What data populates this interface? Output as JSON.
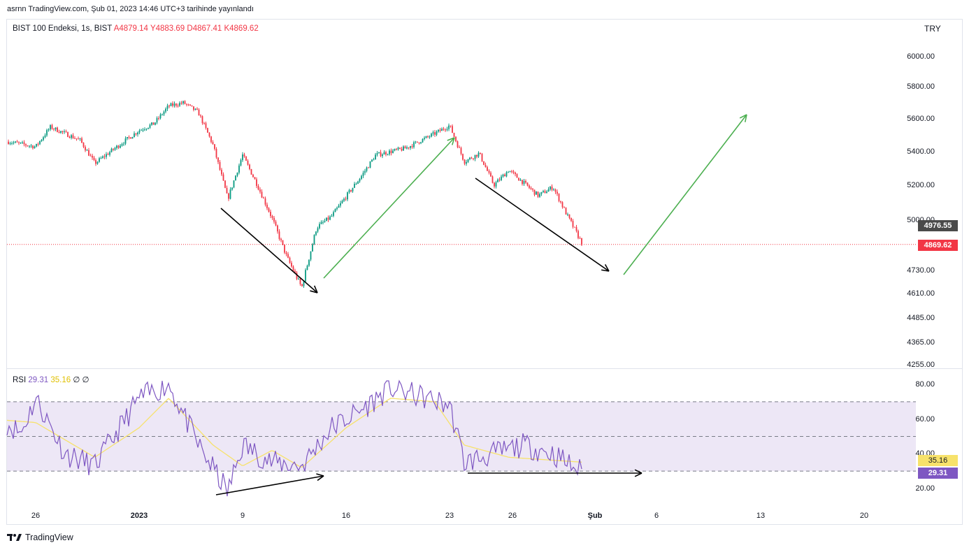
{
  "header": {
    "published": "asrnn TradingView.com, Şub 01, 2023 14:46 UTC+3 tarihinde yayınlandı"
  },
  "legend": {
    "symbol": "BIST 100 Endeksi, 1s, BIST",
    "open": "A4879.14",
    "high": "Y4883.69",
    "low": "D4867.41",
    "close": "K4869.62"
  },
  "rsi_legend": {
    "label": "RSI",
    "rsi": "29.31",
    "ma": "35.16",
    "extra": "∅ ∅"
  },
  "currency": "TRY",
  "price_axis": [
    "6000.00",
    "5800.00",
    "5600.00",
    "5400.00",
    "5200.00",
    "5000.00",
    "4730.00",
    "4610.00",
    "4485.00",
    "4365.00",
    "4255.00"
  ],
  "price_badges": {
    "last_visible": "4976.55",
    "current": "4869.62"
  },
  "rsi_axis": [
    "80.00",
    "60.00",
    "40.00",
    "20.00"
  ],
  "rsi_badges": {
    "ma": "35.16",
    "rsi": "29.31"
  },
  "time_axis": [
    "26",
    "2023",
    "9",
    "16",
    "23",
    "26",
    "Şub",
    "6",
    "13",
    "20"
  ],
  "footer": {
    "brand": "TradingView"
  },
  "colors": {
    "up": "#089981",
    "down": "#f23645",
    "rsi_line": "#7e57c2",
    "rsi_ma": "#f7e26b",
    "rsi_band": "#ede7f6",
    "arrow_green": "#4caf50",
    "arrow_black": "#000000"
  },
  "chart_data": [
    {
      "type": "candlestick",
      "title": "BIST 100 Endeksi, 1s, BIST",
      "ylim": [
        4255,
        6100
      ],
      "current_price": 4869.62,
      "path_points": [
        {
          "x": "2022-12-23",
          "y": 5480
        },
        {
          "x": "2022-12-26",
          "y": 5430
        },
        {
          "x": "2022-12-27",
          "y": 5550
        },
        {
          "x": "2022-12-29",
          "y": 5470
        },
        {
          "x": "2022-12-30",
          "y": 5330
        },
        {
          "x": "2023-01-02",
          "y": 5530
        },
        {
          "x": "2023-01-03",
          "y": 5570
        },
        {
          "x": "2023-01-04",
          "y": 5680
        },
        {
          "x": "2023-01-05",
          "y": 5700
        },
        {
          "x": "2023-01-06",
          "y": 5640
        },
        {
          "x": "2023-01-07",
          "y": 5440
        },
        {
          "x": "2023-01-08",
          "y": 5120
        },
        {
          "x": "2023-01-09",
          "y": 5380
        },
        {
          "x": "2023-01-10",
          "y": 5200
        },
        {
          "x": "2023-01-11",
          "y": 5010
        },
        {
          "x": "2023-01-12",
          "y": 4800
        },
        {
          "x": "2023-01-13",
          "y": 4640
        },
        {
          "x": "2023-01-14",
          "y": 4960
        },
        {
          "x": "2023-01-15",
          "y": 5020
        },
        {
          "x": "2023-01-17",
          "y": 5250
        },
        {
          "x": "2023-01-18",
          "y": 5380
        },
        {
          "x": "2023-01-20",
          "y": 5420
        },
        {
          "x": "2023-01-22",
          "y": 5510
        },
        {
          "x": "2023-01-23",
          "y": 5560
        },
        {
          "x": "2023-01-24",
          "y": 5340
        },
        {
          "x": "2023-01-25",
          "y": 5390
        },
        {
          "x": "2023-01-26",
          "y": 5200
        },
        {
          "x": "2023-01-27",
          "y": 5290
        },
        {
          "x": "2023-01-29",
          "y": 5140
        },
        {
          "x": "2023-01-30",
          "y": 5190
        },
        {
          "x": "2023-01-31",
          "y": 5020
        },
        {
          "x": "2023-02-01",
          "y": 4869.62
        }
      ]
    },
    {
      "type": "line",
      "title": "RSI",
      "ylim": [
        10,
        85
      ],
      "levels": [
        70,
        50,
        30
      ],
      "series": [
        {
          "name": "RSI",
          "values": [
            {
              "x": "2022-12-23",
              "y": 64
            },
            {
              "x": "2022-12-25",
              "y": 52
            },
            {
              "x": "2022-12-26",
              "y": 72
            },
            {
              "x": "2022-12-28",
              "y": 40
            },
            {
              "x": "2022-12-30",
              "y": 33
            },
            {
              "x": "2023-01-02",
              "y": 72
            },
            {
              "x": "2023-01-04",
              "y": 80
            },
            {
              "x": "2023-01-06",
              "y": 45
            },
            {
              "x": "2023-01-08",
              "y": 18
            },
            {
              "x": "2023-01-09",
              "y": 45
            },
            {
              "x": "2023-01-11",
              "y": 35
            },
            {
              "x": "2023-01-13",
              "y": 33
            },
            {
              "x": "2023-01-15",
              "y": 55
            },
            {
              "x": "2023-01-17",
              "y": 65
            },
            {
              "x": "2023-01-19",
              "y": 78
            },
            {
              "x": "2023-01-21",
              "y": 73
            },
            {
              "x": "2023-01-23",
              "y": 68
            },
            {
              "x": "2023-01-24",
              "y": 35
            },
            {
              "x": "2023-01-26",
              "y": 40
            },
            {
              "x": "2023-01-28",
              "y": 45
            },
            {
              "x": "2023-01-30",
              "y": 40
            },
            {
              "x": "2023-02-01",
              "y": 29.31
            }
          ]
        },
        {
          "name": "MA",
          "values": [
            {
              "x": "2022-12-23",
              "y": 60
            },
            {
              "x": "2022-12-26",
              "y": 58
            },
            {
              "x": "2022-12-30",
              "y": 38
            },
            {
              "x": "2023-01-02",
              "y": 55
            },
            {
              "x": "2023-01-04",
              "y": 72
            },
            {
              "x": "2023-01-07",
              "y": 45
            },
            {
              "x": "2023-01-09",
              "y": 33
            },
            {
              "x": "2023-01-11",
              "y": 42
            },
            {
              "x": "2023-01-13",
              "y": 32
            },
            {
              "x": "2023-01-16",
              "y": 55
            },
            {
              "x": "2023-01-19",
              "y": 72
            },
            {
              "x": "2023-01-22",
              "y": 70
            },
            {
              "x": "2023-01-24",
              "y": 45
            },
            {
              "x": "2023-01-27",
              "y": 38
            },
            {
              "x": "2023-02-01",
              "y": 35.16
            }
          ]
        }
      ]
    }
  ]
}
